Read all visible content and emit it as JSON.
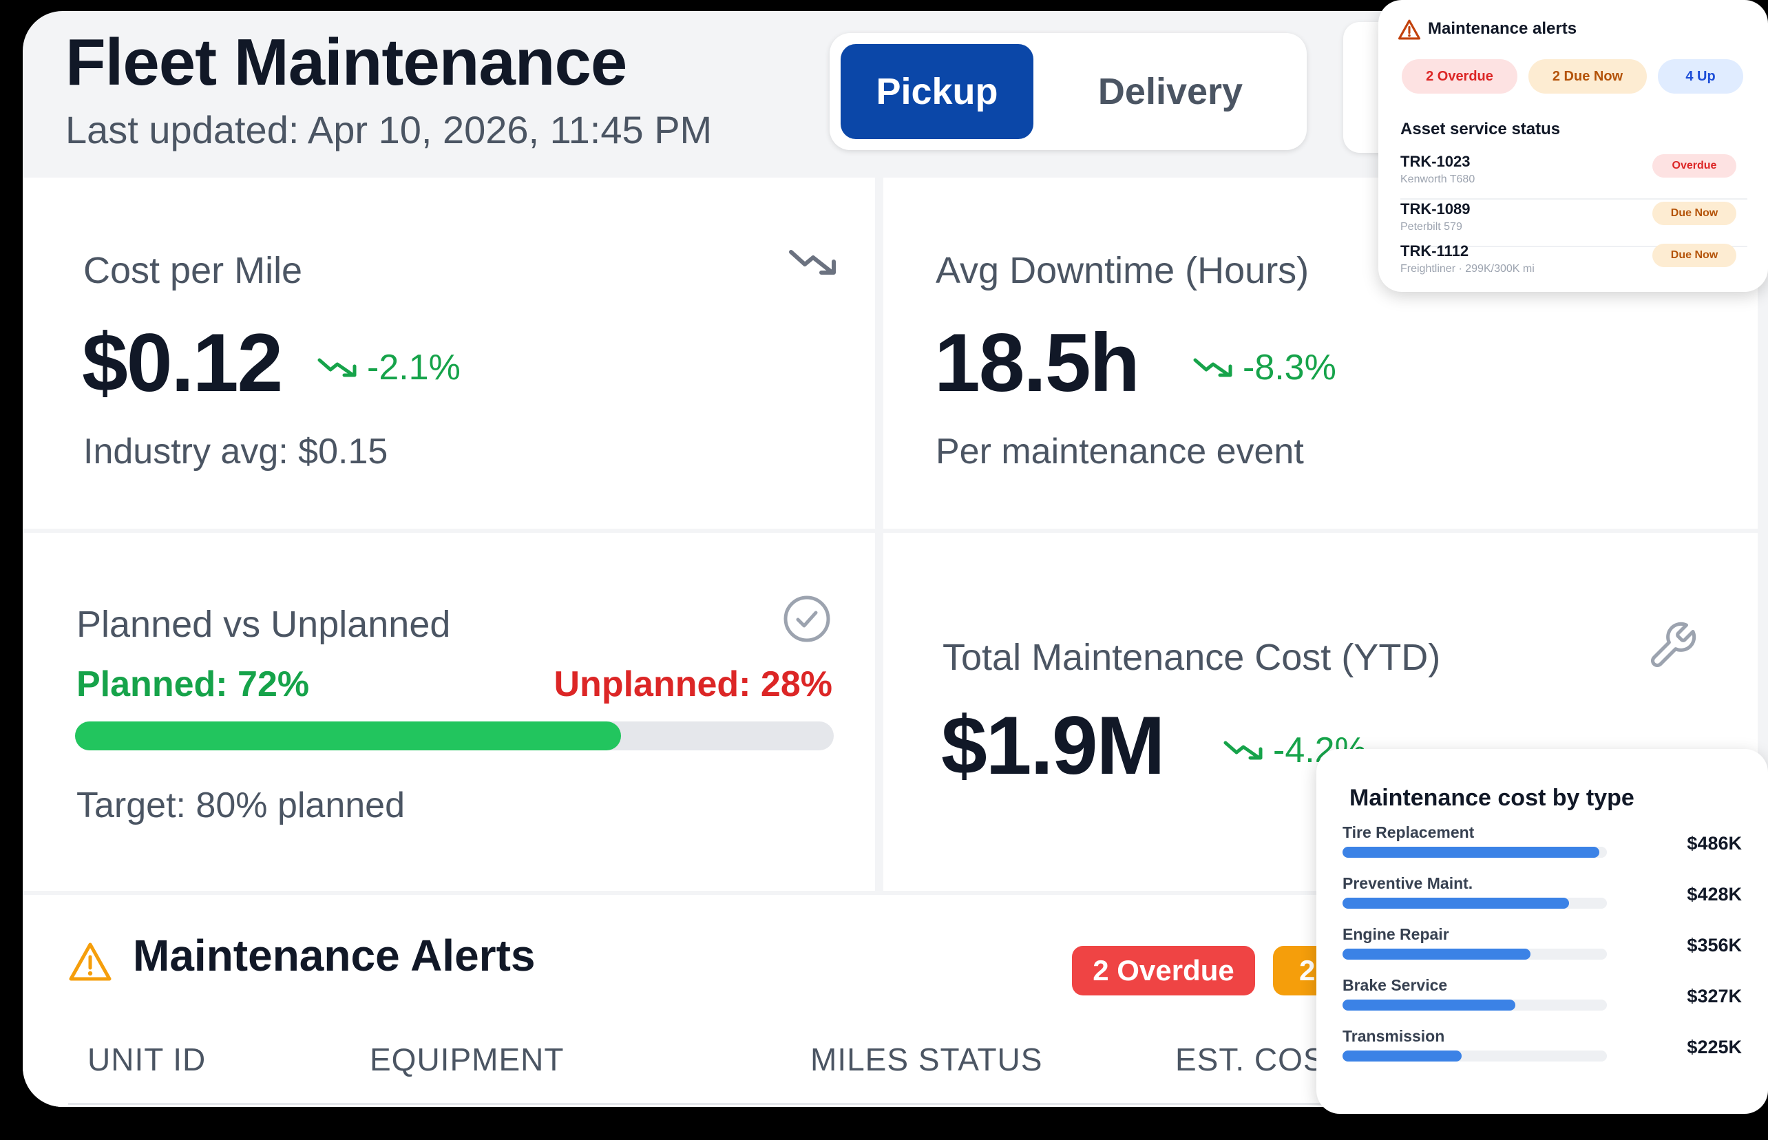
{
  "header": {
    "title": "Fleet Maintenance",
    "last_updated": "Last updated: Apr 10, 2026, 11:45 PM",
    "toggle": {
      "pickup": "Pickup",
      "delivery": "Delivery",
      "active": "Pickup"
    }
  },
  "kpis": {
    "cost_per_mile": {
      "label": "Cost per Mile",
      "value": "$0.12",
      "delta": "-2.1%",
      "sub": "Industry avg: $0.15",
      "icon": "trending-down-icon"
    },
    "downtime": {
      "label": "Avg Downtime (Hours)",
      "value": "18.5h",
      "delta": "-8.3%",
      "sub": "Per maintenance event"
    },
    "planned": {
      "label": "Planned vs Unplanned",
      "planned_text": "Planned: 72%",
      "unplanned_text": "Unplanned: 28%",
      "planned_fraction": 0.72,
      "target": "Target: 80% planned",
      "icon": "check-circle-icon"
    },
    "total_cost": {
      "label": "Total Maintenance Cost (YTD)",
      "value": "$1.9M",
      "delta": "-4.2%",
      "icon": "wrench-icon"
    }
  },
  "alerts_section": {
    "title": "Maintenance Alerts",
    "overdue_pill": "2 Overdue",
    "due_pill_partial": "2",
    "columns": [
      "UNIT ID",
      "EQUIPMENT",
      "MILES STATUS",
      "EST. COS"
    ]
  },
  "alerts_popup": {
    "title": "Maintenance alerts",
    "pills": {
      "overdue": "2 Overdue",
      "due_now": "2 Due Now",
      "up": "4 Up"
    },
    "asset_heading": "Asset service status",
    "assets": [
      {
        "id": "TRK-1023",
        "model": "Kenworth T680",
        "status": "Overdue"
      },
      {
        "id": "TRK-1089",
        "model": "Peterbilt 579",
        "status": "Due Now"
      },
      {
        "id": "TRK-1112",
        "model": "Freightliner · 299K/300K mi",
        "status": "Due Now"
      }
    ]
  },
  "cost_popup": {
    "title": "Maintenance cost by type",
    "items": [
      {
        "label": "Tire Replacement",
        "value": "$486K",
        "amount": 486
      },
      {
        "label": "Preventive Maint.",
        "value": "$428K",
        "amount": 428
      },
      {
        "label": "Engine Repair",
        "value": "$356K",
        "amount": 356
      },
      {
        "label": "Brake Service",
        "value": "$327K",
        "amount": 327
      },
      {
        "label": "Transmission",
        "value": "$225K",
        "amount": 225
      }
    ]
  },
  "colors": {
    "accent_blue": "#0b47a8",
    "positive_green": "#16a34a",
    "negative_red": "#dc2626",
    "overdue_red": "#ef4444",
    "due_orange": "#f59e0b",
    "bar_blue": "#3b82e6"
  }
}
